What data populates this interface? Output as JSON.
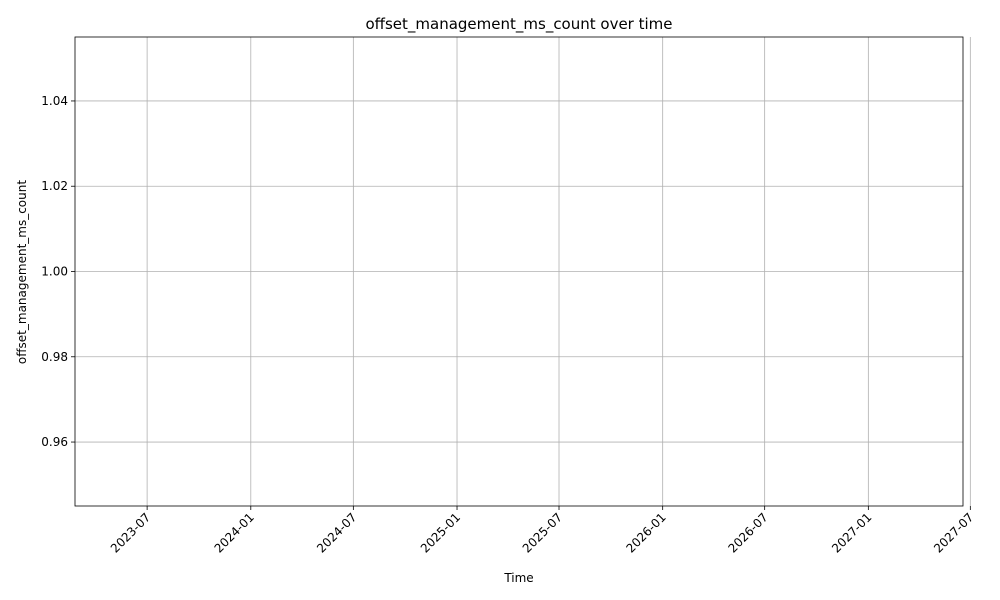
{
  "chart_data": {
    "type": "line",
    "title": "offset_management_ms_count over time",
    "xlabel": "Time",
    "ylabel": "offset_management_ms_count",
    "x_ticks": [
      "2023-07",
      "2024-01",
      "2024-07",
      "2025-01",
      "2025-07",
      "2026-01",
      "2026-07",
      "2027-01",
      "2027-07"
    ],
    "xlim": [
      "2023-02-23",
      "2027-06-18"
    ],
    "y_ticks": [
      "0.96",
      "0.98",
      "1.00",
      "1.02",
      "1.04"
    ],
    "ylim": [
      0.945,
      1.055
    ],
    "grid": true,
    "series": []
  }
}
